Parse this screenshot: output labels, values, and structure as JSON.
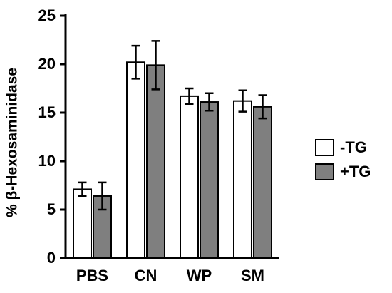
{
  "chart_data": {
    "type": "bar",
    "y_label": "% β-Hexosaminidase",
    "categories": [
      "PBS",
      "CN",
      "WP",
      "SM"
    ],
    "series": [
      {
        "name": "-TG",
        "color": "#ffffff",
        "values": [
          7.1,
          20.2,
          16.7,
          16.2
        ],
        "errors": [
          0.7,
          1.7,
          0.8,
          1.1
        ]
      },
      {
        "name": "+TG",
        "color": "#7f7f7f",
        "values": [
          6.4,
          19.9,
          16.1,
          15.6
        ],
        "errors": [
          1.4,
          2.5,
          0.9,
          1.2
        ]
      }
    ],
    "ylim": [
      0,
      25
    ],
    "yticks": [
      0,
      5,
      10,
      15,
      20,
      25
    ],
    "grid": false,
    "legend": "right"
  }
}
